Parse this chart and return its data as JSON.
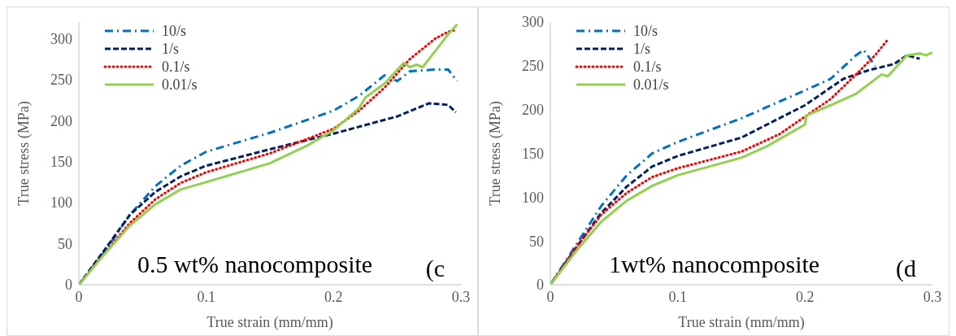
{
  "chart_data": [
    {
      "type": "line",
      "xlabel": "True strain (mm/mm)",
      "ylabel": "True stress (MPa)",
      "xlim": [
        0,
        0.3
      ],
      "xticks": [
        0,
        0.1,
        0.2,
        0.3
      ],
      "ylim": [
        0,
        320
      ],
      "yticks": [
        0,
        50,
        100,
        150,
        200,
        250,
        300
      ],
      "grid": false,
      "legend": "top left",
      "marker": "none",
      "annotations": [
        "0.5 wt% nanocomposite",
        "(c"
      ],
      "series": [
        {
          "name": "10/s",
          "color": "#0070c0",
          "line_style": "dashdot",
          "x": [
            0,
            0.02,
            0.04,
            0.06,
            0.08,
            0.1,
            0.15,
            0.2,
            0.22,
            0.24,
            0.25,
            0.26,
            0.28,
            0.29,
            0.297
          ],
          "values": [
            0,
            40,
            85,
            120,
            145,
            162,
            185,
            212,
            230,
            255,
            248,
            260,
            262,
            262,
            248
          ]
        },
        {
          "name": "1/s",
          "color": "#002060",
          "line_style": "dashed",
          "x": [
            0,
            0.02,
            0.04,
            0.06,
            0.08,
            0.1,
            0.15,
            0.2,
            0.25,
            0.275,
            0.29,
            0.296
          ],
          "values": [
            0,
            42,
            85,
            113,
            132,
            145,
            165,
            184,
            205,
            221,
            219,
            210
          ]
        },
        {
          "name": "0.1/s",
          "color": "#ff0000",
          "line_style": "dotted",
          "x": [
            0,
            0.02,
            0.04,
            0.06,
            0.08,
            0.1,
            0.15,
            0.18,
            0.2,
            0.22,
            0.24,
            0.26,
            0.28,
            0.29,
            0.295
          ],
          "values": [
            0,
            38,
            75,
            104,
            124,
            137,
            160,
            178,
            190,
            212,
            240,
            275,
            300,
            308,
            310
          ]
        },
        {
          "name": "0.01/s",
          "color": "#92d050",
          "line_style": "solid",
          "x": [
            0,
            0.02,
            0.04,
            0.06,
            0.08,
            0.1,
            0.15,
            0.18,
            0.2,
            0.22,
            0.225,
            0.24,
            0.255,
            0.26,
            0.265,
            0.27,
            0.28,
            0.29,
            0.297
          ],
          "values": [
            0,
            37,
            72,
            98,
            116,
            125,
            148,
            170,
            188,
            215,
            228,
            245,
            270,
            265,
            268,
            265,
            285,
            305,
            317
          ]
        }
      ]
    },
    {
      "type": "line",
      "xlabel": "True strain (mm/mm)",
      "ylabel": "True stress (MPa)",
      "xlim": [
        0,
        0.3
      ],
      "xticks": [
        0,
        0.1,
        0.2,
        0.3
      ],
      "ylim": [
        0,
        300
      ],
      "yticks": [
        0,
        50,
        100,
        150,
        200,
        250,
        300
      ],
      "grid": false,
      "legend": "top left",
      "marker": "none",
      "annotations": [
        "1wt% nanocomposite",
        "(d"
      ],
      "series": [
        {
          "name": "10/s",
          "color": "#0070c0",
          "line_style": "dashdot",
          "x": [
            0,
            0.02,
            0.04,
            0.06,
            0.08,
            0.1,
            0.15,
            0.2,
            0.22,
            0.24,
            0.246,
            0.255
          ],
          "values": [
            0,
            45,
            90,
            125,
            150,
            163,
            190,
            222,
            235,
            262,
            268,
            250
          ]
        },
        {
          "name": "1/s",
          "color": "#002060",
          "line_style": "dashed",
          "x": [
            0,
            0.02,
            0.04,
            0.06,
            0.08,
            0.1,
            0.15,
            0.2,
            0.23,
            0.25,
            0.27,
            0.28,
            0.29
          ],
          "values": [
            0,
            42,
            82,
            112,
            135,
            147,
            168,
            205,
            235,
            245,
            252,
            262,
            258
          ]
        },
        {
          "name": "0.1/s",
          "color": "#ff0000",
          "line_style": "dotted",
          "x": [
            0,
            0.02,
            0.04,
            0.06,
            0.08,
            0.1,
            0.15,
            0.18,
            0.2,
            0.22,
            0.24,
            0.255,
            0.265
          ],
          "values": [
            0,
            42,
            80,
            105,
            123,
            133,
            152,
            172,
            192,
            212,
            240,
            262,
            280
          ]
        },
        {
          "name": "0.01/s",
          "color": "#92d050",
          "line_style": "solid",
          "x": [
            0,
            0.02,
            0.04,
            0.06,
            0.08,
            0.1,
            0.15,
            0.17,
            0.2,
            0.201,
            0.22,
            0.24,
            0.26,
            0.265,
            0.28,
            0.29,
            0.295,
            0.3
          ],
          "values": [
            0,
            38,
            72,
            96,
            113,
            125,
            145,
            158,
            183,
            193,
            205,
            218,
            240,
            238,
            262,
            264,
            262,
            265
          ]
        }
      ]
    }
  ]
}
